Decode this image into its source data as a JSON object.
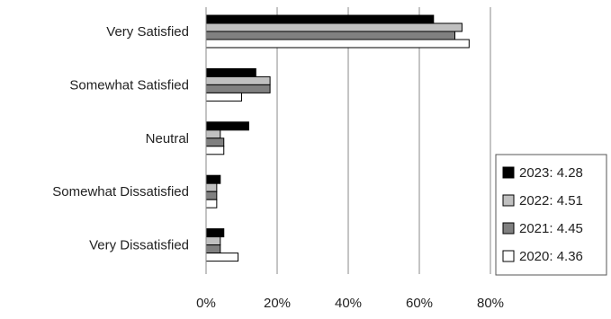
{
  "chart_data": {
    "type": "bar",
    "orientation": "horizontal",
    "categories": [
      "Very Satisfied",
      "Somewhat Satisfied",
      "Neutral",
      "Somewhat Dissatisfied",
      "Very Dissatisfied"
    ],
    "series": [
      {
        "name": "2023: 4.28",
        "color": "#000000",
        "values": [
          64,
          14,
          12,
          4,
          5
        ]
      },
      {
        "name": "2022: 4.51",
        "color": "#c0c0c0",
        "values": [
          72,
          18,
          4,
          3,
          4
        ]
      },
      {
        "name": "2021: 4.45",
        "color": "#808080",
        "values": [
          70,
          18,
          5,
          3,
          4
        ]
      },
      {
        "name": "2020: 4.36",
        "color": "#ffffff",
        "values": [
          74,
          10,
          5,
          3,
          9
        ]
      }
    ],
    "xlim": [
      0,
      80
    ],
    "x_ticks": [
      "0%",
      "20%",
      "40%",
      "60%",
      "80%"
    ],
    "x_tick_values": [
      0,
      20,
      40,
      60,
      80
    ],
    "grid": "vertical",
    "legend_position": "right"
  }
}
